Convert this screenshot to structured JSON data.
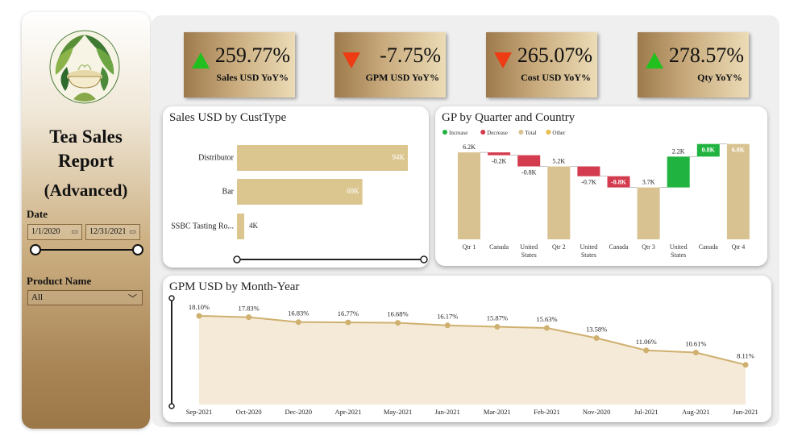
{
  "sidebar": {
    "title_line1": "Tea Sales",
    "title_line2": "Report",
    "title_line3": "(Advanced)",
    "date_label": "Date",
    "date_start": "1/1/2020",
    "date_end": "12/31/2021",
    "calendar_icon": "calendar-icon",
    "product_label": "Product Name",
    "product_value": "All"
  },
  "kpis": [
    {
      "value": "259.77%",
      "label": "Sales USD YoY%",
      "direction": "up",
      "color": "#22c01e"
    },
    {
      "value": "-7.75%",
      "label": "GPM USD YoY%",
      "direction": "down",
      "color": "#ee3b13"
    },
    {
      "value": "265.07%",
      "label": "Cost USD YoY%",
      "direction": "down",
      "color": "#ee3b13"
    },
    {
      "value": "278.57%",
      "label": "Qty YoY%",
      "direction": "up",
      "color": "#22c01e"
    }
  ],
  "colors": {
    "bar": "#dcc690",
    "increase": "#20b33f",
    "decrease": "#d33b4e",
    "total": "#d9c291",
    "other": "#e8bd4d",
    "line": "#cfb06f",
    "area": "#f4ead7"
  },
  "cards": {
    "custtype_title": "Sales USD by CustType",
    "waterfall_title": "GP by Quarter and Country",
    "gpm_title": "GPM USD by Month-Year"
  },
  "chart_data": [
    {
      "type": "bar",
      "orientation": "horizontal",
      "title": "Sales USD by CustType",
      "categories": [
        "Distributor",
        "Bar",
        "SSBC Tasting Ro..."
      ],
      "values": [
        94,
        69,
        4
      ],
      "value_labels": [
        "94K",
        "69K",
        "4K"
      ],
      "unit": "K"
    },
    {
      "type": "bar",
      "subtype": "waterfall",
      "title": "GP by Quarter and Country",
      "legend": [
        "Increase",
        "Decrease",
        "Total",
        "Other"
      ],
      "legend_position": "top-left",
      "steps": [
        {
          "label": "Qtr 1",
          "kind": "total",
          "start": 0,
          "end": 6.2,
          "value_label": "6.2K"
        },
        {
          "label": "Canada",
          "kind": "decrease",
          "start": 6.2,
          "end": 6.0,
          "value_label": "-0.2K"
        },
        {
          "label": "United States",
          "kind": "decrease",
          "start": 6.0,
          "end": 5.2,
          "value_label": "-0.8K"
        },
        {
          "label": "Qtr 2",
          "kind": "total",
          "start": 0,
          "end": 5.2,
          "value_label": "5.2K"
        },
        {
          "label": "United States",
          "kind": "decrease",
          "start": 5.2,
          "end": 4.5,
          "value_label": "-0.7K"
        },
        {
          "label": "Canada",
          "kind": "decrease",
          "start": 4.5,
          "end": 3.7,
          "value_label": "-0.8K"
        },
        {
          "label": "Qtr 3",
          "kind": "total",
          "start": 0,
          "end": 3.7,
          "value_label": "3.7K"
        },
        {
          "label": "United States",
          "kind": "increase",
          "start": 3.7,
          "end": 5.9,
          "value_label": "2.2K"
        },
        {
          "label": "Canada",
          "kind": "increase",
          "start": 5.9,
          "end": 6.8,
          "value_label": "0.8K"
        },
        {
          "label": "Qtr 4",
          "kind": "total",
          "start": 0,
          "end": 6.8,
          "value_label": "6.8K"
        }
      ]
    },
    {
      "type": "area",
      "title": "GPM USD by Month-Year",
      "categories": [
        "Sep-2021",
        "Oct-2020",
        "Dec-2020",
        "Apr-2021",
        "May-2021",
        "Jan-2021",
        "Mar-2021",
        "Feb-2021",
        "Nov-2020",
        "Jul-2021",
        "Aug-2021",
        "Jun-2021"
      ],
      "values": [
        18.1,
        17.83,
        16.83,
        16.77,
        16.68,
        16.17,
        15.87,
        15.63,
        13.58,
        11.06,
        10.61,
        8.11
      ],
      "value_labels": [
        "18.10%",
        "17.83%",
        "16.83%",
        "16.77%",
        "16.68%",
        "16.17%",
        "15.87%",
        "15.63%",
        "13.58%",
        "11.06%",
        "10.61%",
        "8.11%"
      ],
      "ylim": [
        0,
        20
      ]
    }
  ]
}
